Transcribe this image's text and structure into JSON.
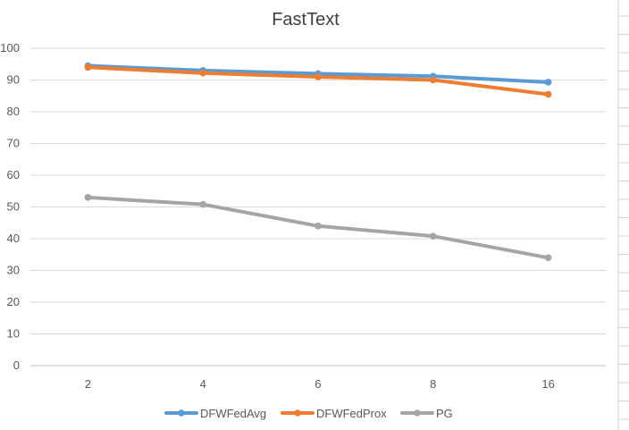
{
  "chart_data": {
    "type": "line",
    "title": "FastText",
    "xlabel": "",
    "ylabel": "",
    "categories": [
      "2",
      "4",
      "6",
      "8",
      "16"
    ],
    "ylim": [
      0,
      100
    ],
    "yticks": [
      0,
      10,
      20,
      30,
      40,
      50,
      60,
      70,
      80,
      90,
      100
    ],
    "grid": true,
    "legend_position": "bottom",
    "series": [
      {
        "name": "DFWFedAvg",
        "color": "#5b9bd5",
        "values": [
          94.5,
          93,
          92,
          91.2,
          89.3
        ]
      },
      {
        "name": "DFWFedProx",
        "color": "#ed7d31",
        "values": [
          94,
          92.2,
          91,
          90,
          85.5
        ]
      },
      {
        "name": "PG",
        "color": "#a5a5a5",
        "values": [
          53,
          50.8,
          44,
          40.8,
          34
        ]
      }
    ]
  }
}
